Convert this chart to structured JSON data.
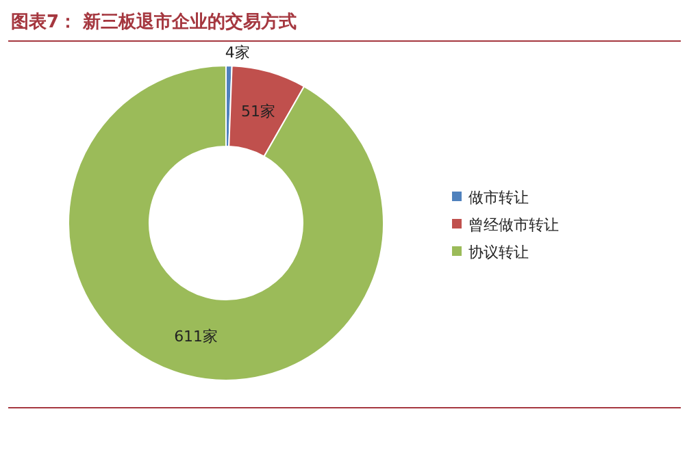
{
  "chart_data": {
    "type": "donut",
    "title": "图表7： 新三板退市企业的交易方式",
    "categories": [
      "做市转让",
      "曾经做市转让",
      "协议转让"
    ],
    "values": [
      4,
      51,
      611
    ],
    "value_labels": [
      "4家",
      "51家",
      "611家"
    ],
    "colors": [
      "#4f81bd",
      "#c0504d",
      "#9bbb59"
    ],
    "legend": "right"
  }
}
